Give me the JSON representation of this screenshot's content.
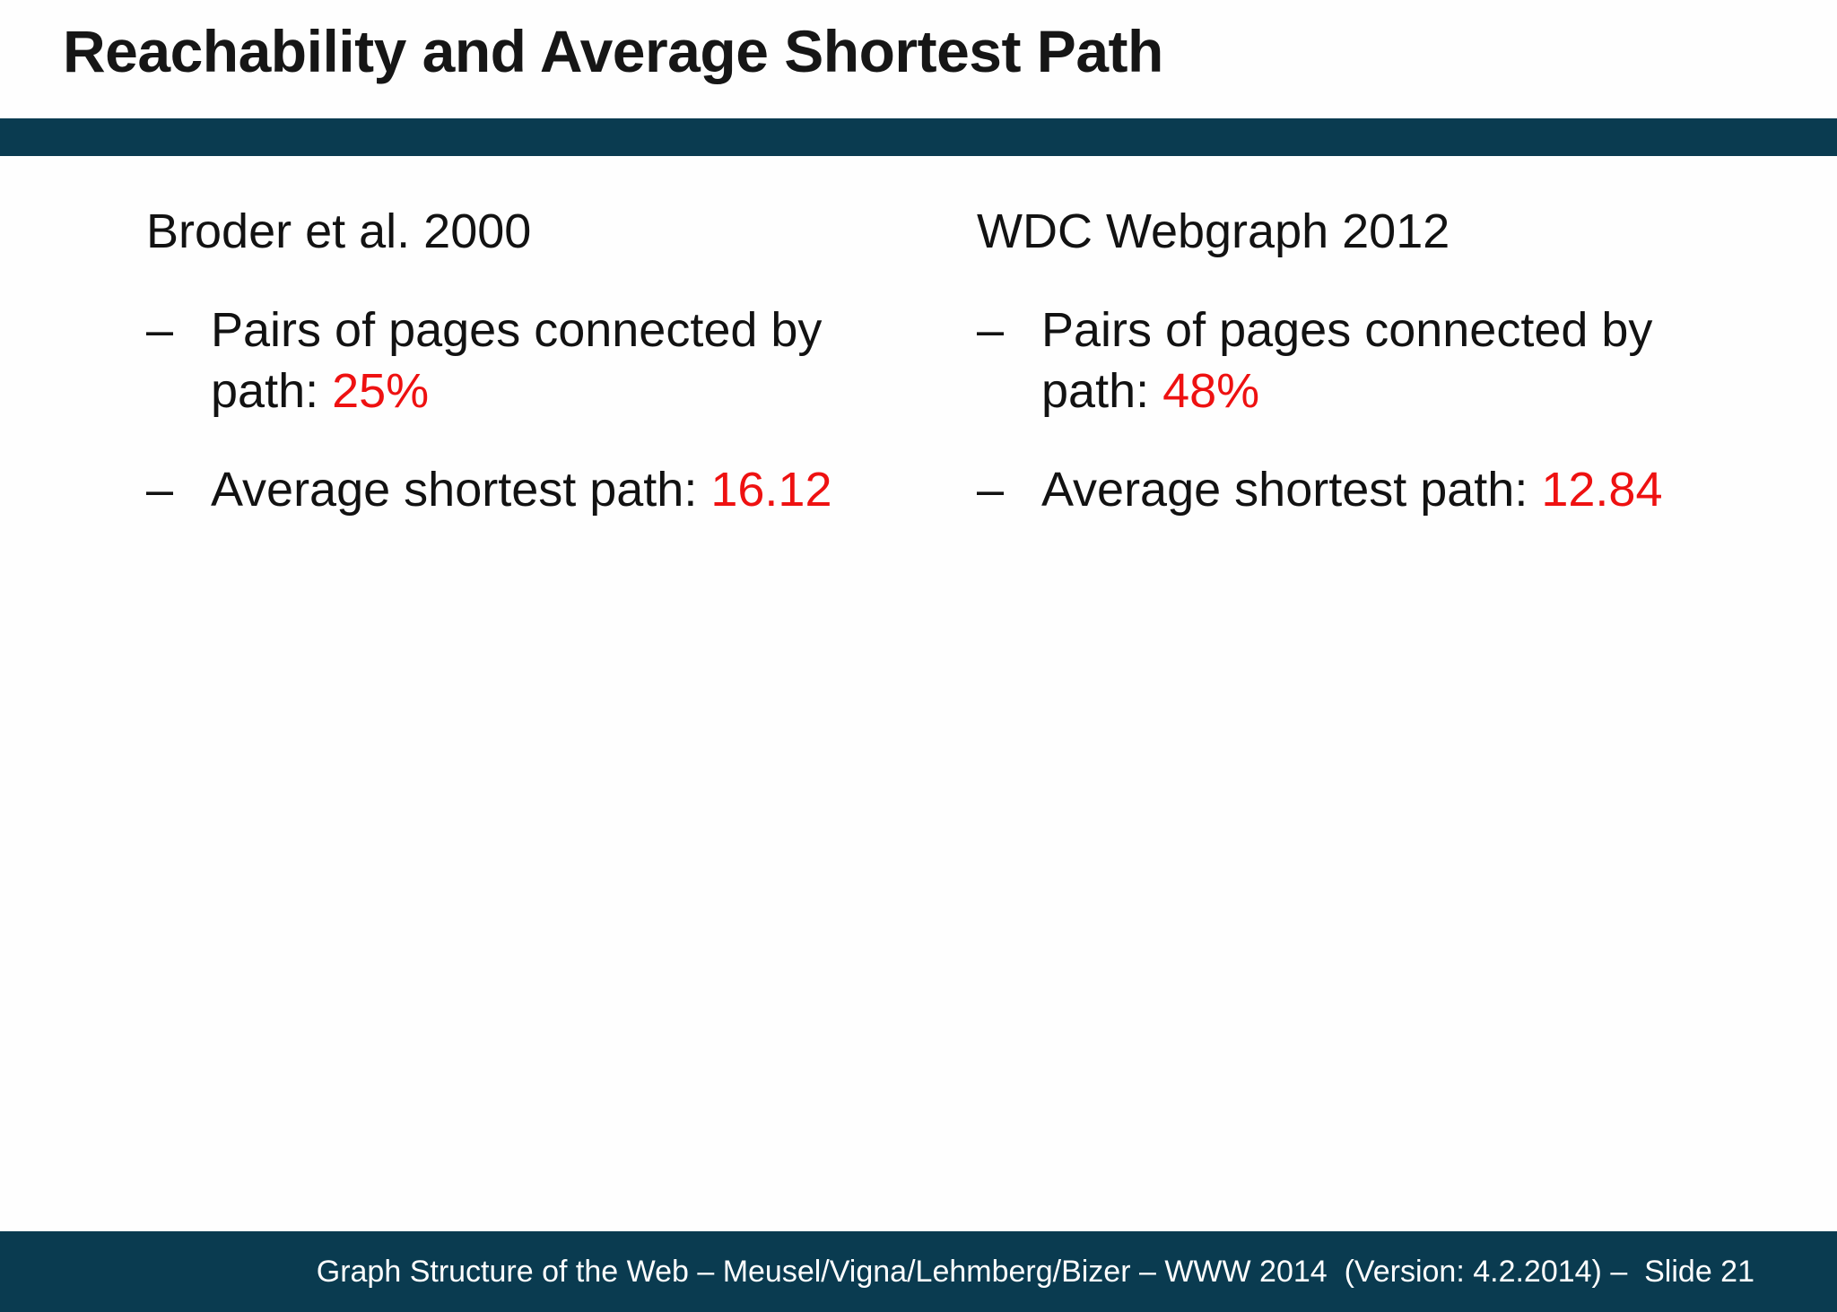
{
  "slide": {
    "title": "Reachability and Average Shortest Path",
    "bullet_char": "–",
    "columns": [
      {
        "heading": "Broder et al. 2000",
        "bullets": [
          {
            "label": "Pairs of pages connected by path: ",
            "value": "25%"
          },
          {
            "label": "Average shortest path: ",
            "value": "16.12"
          }
        ]
      },
      {
        "heading": "WDC Webgraph 2012",
        "bullets": [
          {
            "label": "Pairs of pages connected by path: ",
            "value": "48%"
          },
          {
            "label": "Average shortest path: ",
            "value": "12.84"
          }
        ]
      }
    ],
    "colors": {
      "accent_bar": "#0a3b50",
      "highlight": "#ee1111",
      "footer_text_color": "#ffffff"
    },
    "footer": {
      "text": "Graph Structure of the Web – Meusel/Vigna/Lehmberg/Bizer – WWW 2014  (Version: 4.2.2014) –  Slide 21",
      "slide_number": "21"
    }
  }
}
